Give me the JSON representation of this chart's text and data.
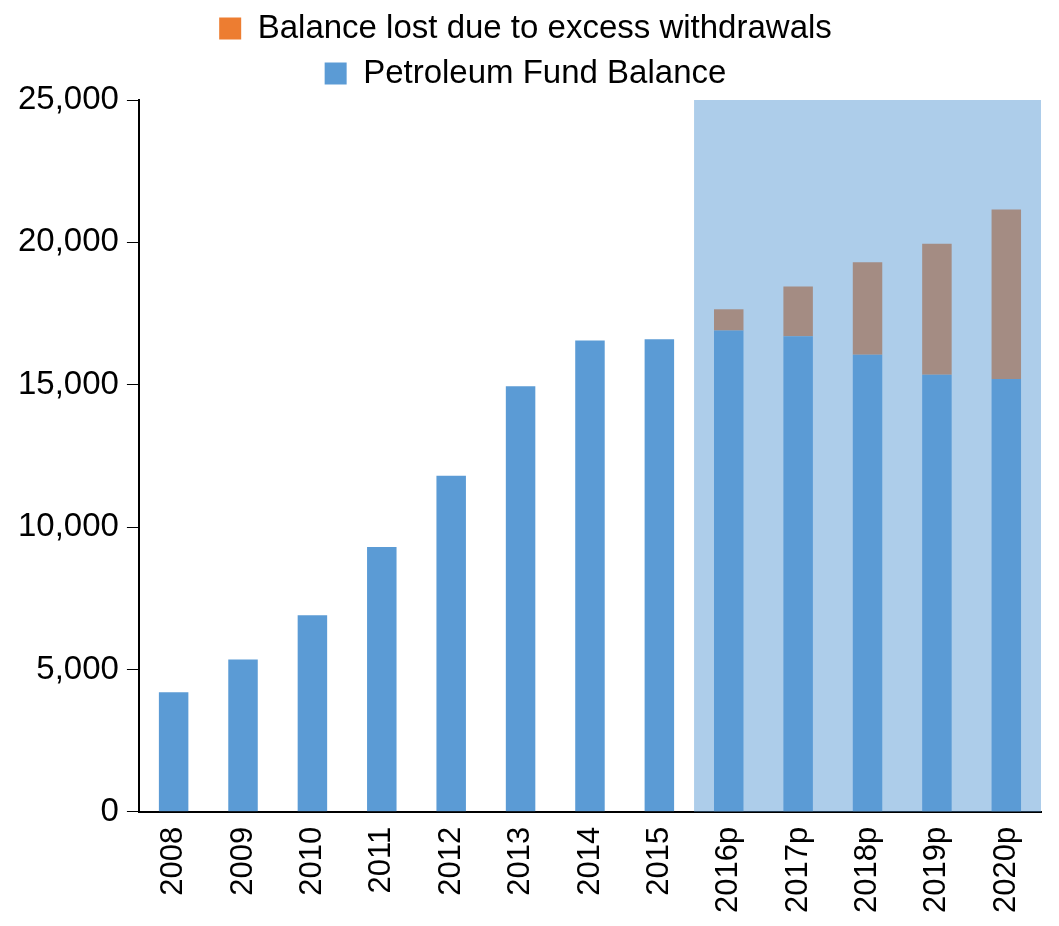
{
  "chart_data": {
    "type": "bar",
    "stacked": true,
    "categories": [
      "2008",
      "2009",
      "2010",
      "2011",
      "2012",
      "2013",
      "2014",
      "2015",
      "2016p",
      "2017p",
      "2018p",
      "2019p",
      "2020p"
    ],
    "series": [
      {
        "name": "Petroleum Fund Balance",
        "color": "#5b9bd5",
        "values": [
          4200,
          5350,
          6900,
          9300,
          11800,
          14950,
          16550,
          16600,
          16900,
          16700,
          16050,
          15350,
          15200
        ]
      },
      {
        "name": "Balance lost due to excess withdrawals",
        "color": "#ed7d31",
        "values": [
          null,
          null,
          null,
          null,
          null,
          null,
          null,
          null,
          750,
          1750,
          3250,
          4600,
          5950
        ]
      }
    ],
    "ylim": [
      0,
      25000
    ],
    "yticks": [
      {
        "value": 0,
        "label": "0"
      },
      {
        "value": 5000,
        "label": "5,000"
      },
      {
        "value": 10000,
        "label": "10,000"
      },
      {
        "value": 15000,
        "label": "15,000"
      },
      {
        "value": 20000,
        "label": "20,000"
      },
      {
        "value": 25000,
        "label": "25,000"
      }
    ],
    "bands": [
      {
        "axis": "x",
        "from": "2016p",
        "to": "2020p",
        "color": "#5b9bd5"
      }
    ],
    "grid": false,
    "legend": "top"
  }
}
